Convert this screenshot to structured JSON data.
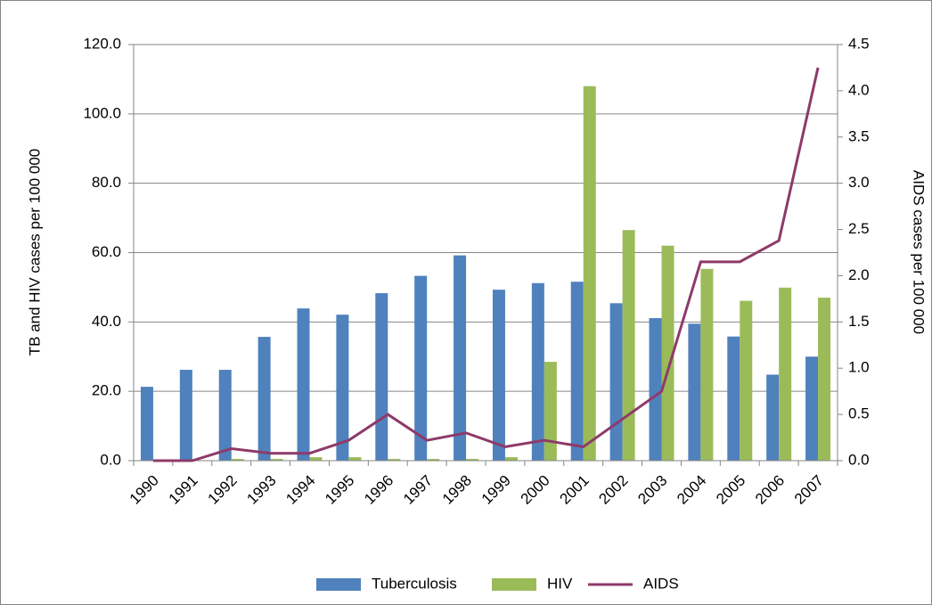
{
  "chart_data": {
    "type": "bar",
    "y_label": "TB and HIV cases per 100 000",
    "y2_label": "AIDS cases per 100 000",
    "categories": [
      "1990",
      "1991",
      "1992",
      "1993",
      "1994",
      "1995",
      "1996",
      "1997",
      "1998",
      "1999",
      "2000",
      "2001",
      "2002",
      "2003",
      "2004",
      "2005",
      "2006",
      "2007"
    ],
    "series": [
      {
        "name": "Tuberculosis",
        "color": "#4f81bd",
        "type": "bar",
        "values": [
          21.3,
          26.2,
          26.2,
          35.7,
          43.9,
          42.1,
          48.3,
          53.3,
          59.2,
          49.3,
          51.2,
          51.6,
          45.4,
          41.1,
          39.5,
          35.8,
          24.8,
          30.0
        ]
      },
      {
        "name": "HIV",
        "color": "#9bbb59",
        "type": "bar",
        "values": [
          0,
          0,
          0.5,
          0.5,
          1,
          1,
          0.5,
          0.5,
          0.5,
          1,
          28.5,
          108,
          66.5,
          62,
          55.3,
          46.1,
          49.9,
          47
        ]
      },
      {
        "name": "AIDS",
        "color": "#8e3a69",
        "type": "line",
        "axis": "y2",
        "values": [
          0,
          0,
          0.13,
          0.08,
          0.08,
          0.22,
          0.5,
          0.22,
          0.3,
          0.15,
          0.22,
          0.15,
          0.45,
          0.75,
          2.15,
          2.15,
          2.38,
          4.25
        ]
      }
    ],
    "ylim": [
      0,
      120
    ],
    "yticks": [
      {
        "value": 0,
        "label": "0.0"
      },
      {
        "value": 20,
        "label": "20.0"
      },
      {
        "value": 40,
        "label": "40.0"
      },
      {
        "value": 60,
        "label": "60.0"
      },
      {
        "value": 80,
        "label": "80.0"
      },
      {
        "value": 100,
        "label": "100.0"
      },
      {
        "value": 120,
        "label": "120.0"
      }
    ],
    "y2lim": [
      0,
      4.5
    ],
    "y2ticks": [
      {
        "value": 0,
        "label": "0.0"
      },
      0.5,
      {
        "value": 1,
        "label": "1.0"
      },
      1.5,
      {
        "value": 2,
        "label": "2.0"
      },
      2.5,
      {
        "value": 3,
        "label": "3.0"
      },
      3.5,
      {
        "value": 4,
        "label": "4.0"
      },
      4.5
    ],
    "grid": true,
    "legend": "bottom"
  }
}
